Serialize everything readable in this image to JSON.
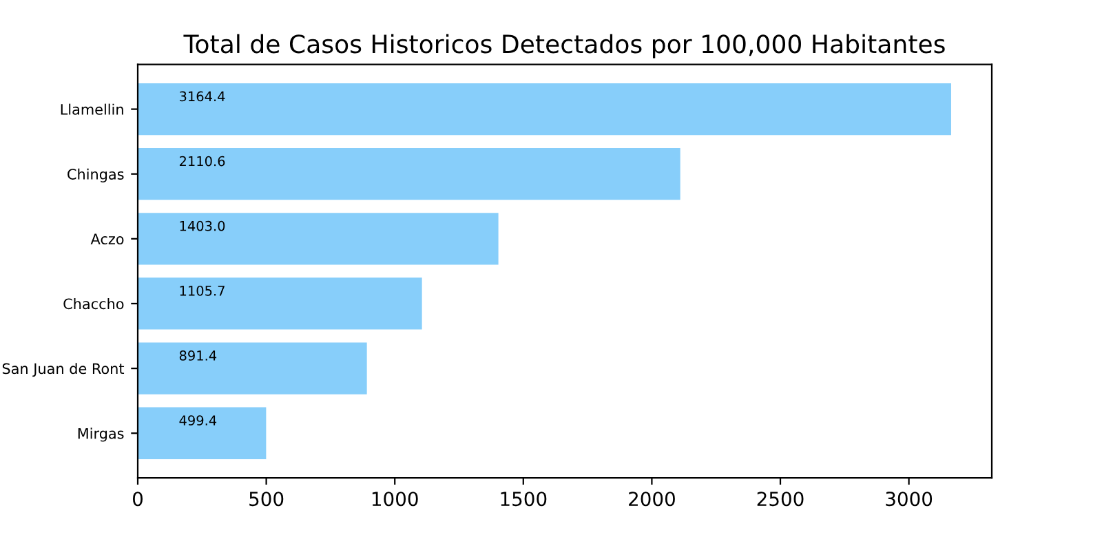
{
  "chart_data": {
    "type": "bar",
    "orientation": "horizontal",
    "title": "Total de Casos Historicos Detectados por 100,000 Habitantes",
    "categories": [
      "Llamellin",
      "Chingas",
      "Aczo",
      "Chaccho",
      "San Juan de Ront",
      "Mirgas"
    ],
    "values": [
      3164.4,
      2110.6,
      1403.0,
      1105.7,
      891.4,
      499.4
    ],
    "value_labels": [
      "3164.4",
      "2110.6",
      "1403.0",
      "1105.7",
      "891.4",
      "499.4"
    ],
    "color": "#87cefa",
    "xlim": [
      0,
      3322.6
    ],
    "xticks": [
      0,
      500,
      1000,
      1500,
      2000,
      2500,
      3000
    ],
    "grid": false
  }
}
